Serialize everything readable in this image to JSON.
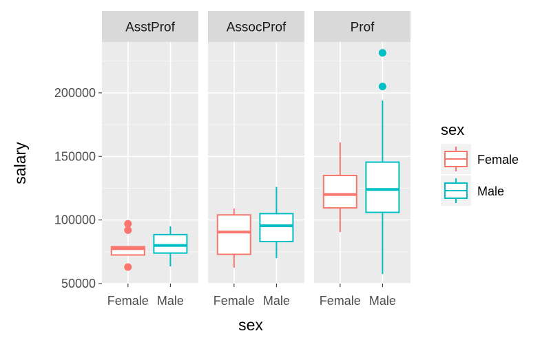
{
  "chart_data": {
    "type": "boxplot",
    "facet_variable": "rank",
    "xlabel": "sex",
    "ylabel": "salary",
    "ylim": [
      50000,
      240000
    ],
    "y_ticks": [
      50000,
      100000,
      150000,
      200000
    ],
    "y_tick_labels": [
      "50000",
      "100000",
      "150000",
      "200000"
    ],
    "categories": [
      "Female",
      "Male"
    ],
    "grid": true,
    "legend": {
      "title": "sex",
      "position": "right",
      "items": [
        {
          "label": "Female",
          "color": "#f8766d"
        },
        {
          "label": "Male",
          "color": "#00bfc4"
        }
      ]
    },
    "facets": [
      {
        "label": "AsstProf",
        "boxes": [
          {
            "sex": "Female",
            "whisker_low": 72000,
            "q1": 72500,
            "median": 77500,
            "q3": 79000,
            "whisker_high": 79500,
            "outliers": [
              63000,
              92000,
              97000
            ]
          },
          {
            "sex": "Male",
            "whisker_low": 63500,
            "q1": 74000,
            "median": 80000,
            "q3": 88500,
            "whisker_high": 95000,
            "outliers": []
          }
        ]
      },
      {
        "label": "AssocProf",
        "boxes": [
          {
            "sex": "Female",
            "whisker_low": 62500,
            "q1": 73000,
            "median": 90500,
            "q3": 104000,
            "whisker_high": 109000,
            "outliers": []
          },
          {
            "sex": "Male",
            "whisker_low": 70000,
            "q1": 83000,
            "median": 95500,
            "q3": 105000,
            "whisker_high": 126000,
            "outliers": []
          }
        ]
      },
      {
        "label": "Prof",
        "boxes": [
          {
            "sex": "Female",
            "whisker_low": 90500,
            "q1": 109500,
            "median": 120000,
            "q3": 135000,
            "whisker_high": 161000,
            "outliers": []
          },
          {
            "sex": "Male",
            "whisker_low": 57500,
            "q1": 106000,
            "median": 124000,
            "q3": 145500,
            "whisker_high": 194000,
            "outliers": [
              205000,
              231500
            ]
          }
        ]
      }
    ]
  }
}
